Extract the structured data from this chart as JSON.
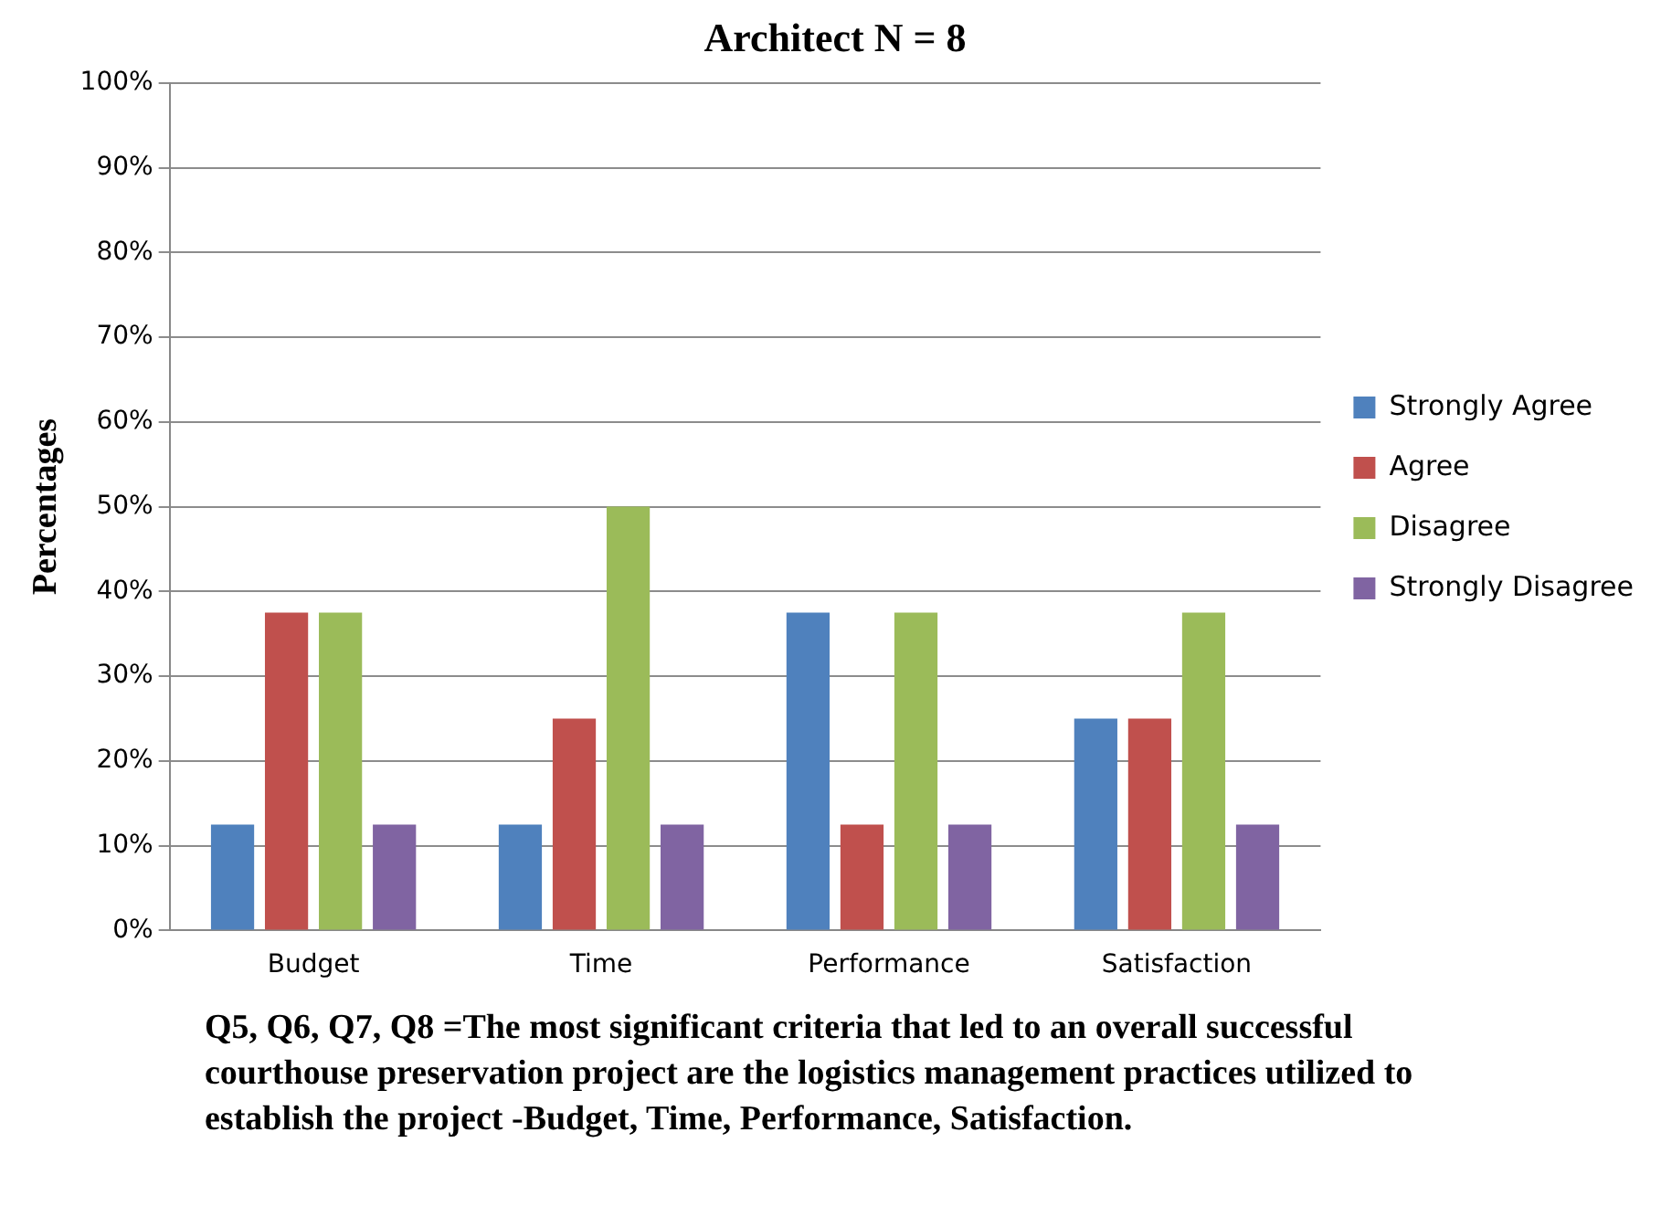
{
  "chart_data": {
    "type": "bar",
    "title": "Architect N = 8",
    "ylabel": "Percentages",
    "categories": [
      "Budget",
      "Time",
      "Performance",
      "Satisfaction"
    ],
    "series": [
      {
        "name": "Strongly Agree",
        "color": "#4f81bd",
        "values": [
          12.5,
          12.5,
          37.5,
          25
        ]
      },
      {
        "name": "Agree",
        "color": "#c0504d",
        "values": [
          37.5,
          25,
          12.5,
          25
        ]
      },
      {
        "name": "Disagree",
        "color": "#9bbb59",
        "values": [
          37.5,
          50,
          37.5,
          37.5
        ]
      },
      {
        "name": "Strongly Disagree",
        "color": "#8064a2",
        "values": [
          12.5,
          12.5,
          12.5,
          12.5
        ]
      }
    ],
    "ylim": [
      0,
      100
    ],
    "yticks": [
      {
        "value": 0,
        "label": "0%"
      },
      {
        "value": 10,
        "label": "10%"
      },
      {
        "value": 20,
        "label": "20%"
      },
      {
        "value": 30,
        "label": "30%"
      },
      {
        "value": 40,
        "label": "40%"
      },
      {
        "value": 50,
        "label": "50%"
      },
      {
        "value": 60,
        "label": "60%"
      },
      {
        "value": 70,
        "label": "70%"
      },
      {
        "value": 80,
        "label": "80%"
      },
      {
        "value": 90,
        "label": "90%"
      },
      {
        "value": 100,
        "label": "100%"
      }
    ],
    "grid": "y",
    "legend": "right",
    "annotations": [
      "Q5, Q6, Q7, Q8 =The most significant criteria that led to an overall successful courthouse preservation project are the logistics management practices utilized to establish the project -Budget, Time, Performance, Satisfaction."
    ]
  }
}
